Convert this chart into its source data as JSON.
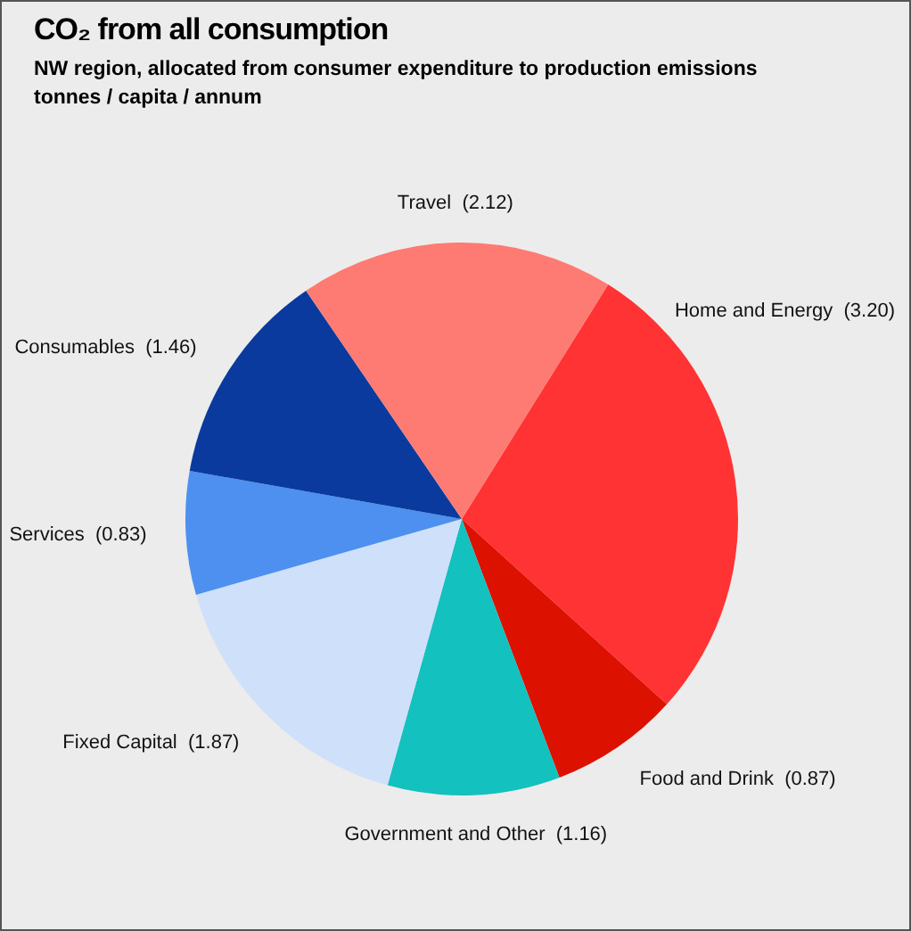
{
  "chart_data": {
    "type": "pie",
    "title": "CO₂ from all consumption",
    "subtitle": "NW region, allocated from consumer expenditure to production emissions\ntonnes / capita / annum",
    "categories": [
      "Home and Energy",
      "Food and Drink",
      "Government and Other",
      "Fixed Capital",
      "Services",
      "Consumables",
      "Travel"
    ],
    "values": [
      3.2,
      0.87,
      1.16,
      1.87,
      0.83,
      1.46,
      2.12
    ],
    "value_labels": [
      "(3.20)",
      "(0.87)",
      "(1.16)",
      "(1.87)",
      "(0.83)",
      "(1.46)",
      "(2.12)"
    ],
    "colors": [
      "#ff3333",
      "#dd1100",
      "#13c1be",
      "#cfe0fb",
      "#4d90ef",
      "#0a3a9e",
      "#fd7b72"
    ],
    "legend": false
  }
}
